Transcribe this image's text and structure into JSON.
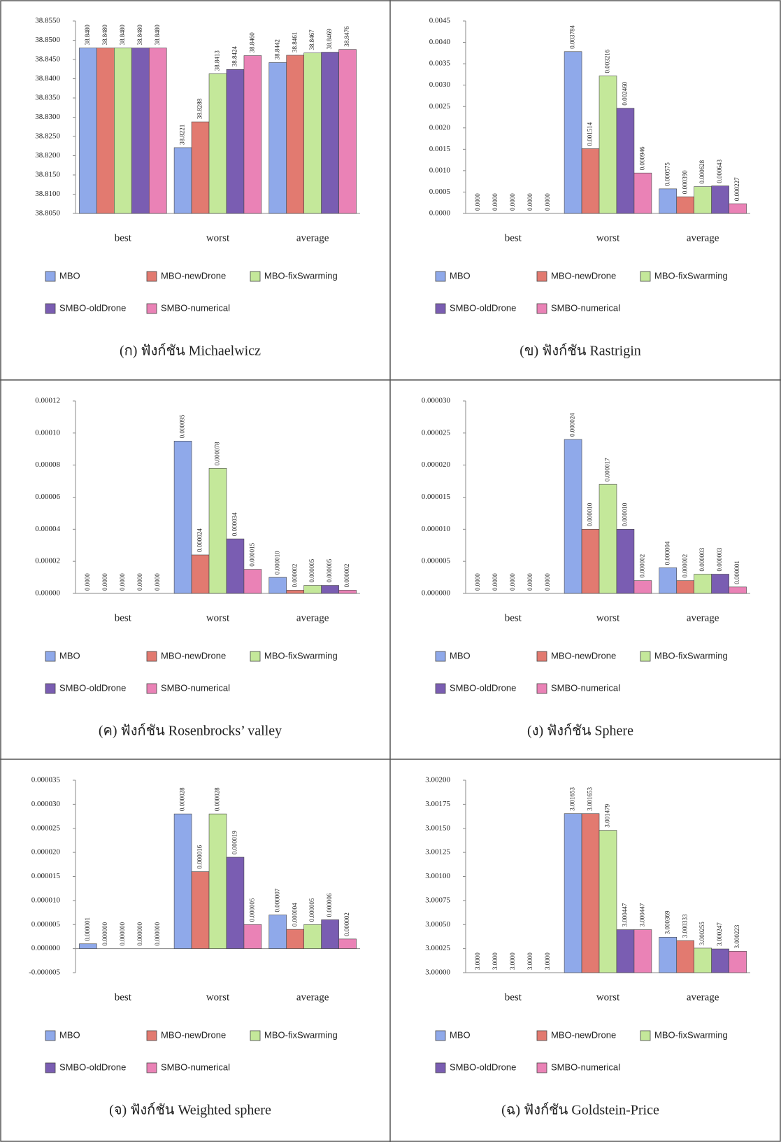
{
  "chart_data": [
    {
      "type": "bar",
      "caption": "(ก) ฟังก์ชัน Michaelwicz",
      "categories": [
        "best",
        "worst",
        "average"
      ],
      "ylim": [
        38.805,
        38.855
      ],
      "yticks": [
        {
          "value": 38.805,
          "label": "38.8050"
        },
        {
          "value": 38.81,
          "label": "38.8100"
        },
        {
          "value": 38.815,
          "label": "38.8150"
        },
        {
          "value": 38.82,
          "label": "38.8200"
        },
        {
          "value": 38.825,
          "label": "38.8250"
        },
        {
          "value": 38.83,
          "label": "38.8300"
        },
        {
          "value": 38.835,
          "label": "38.8350"
        },
        {
          "value": 38.84,
          "label": "38.8400"
        },
        {
          "value": 38.845,
          "label": "38.8450"
        },
        {
          "value": 38.85,
          "label": "38.8500"
        },
        {
          "value": 38.855,
          "label": "38.8550"
        }
      ],
      "series": [
        {
          "name": "MBO",
          "color": "#8fa9ea",
          "values": [
            38.848,
            38.8221,
            38.8442
          ],
          "value_labels": [
            "38.8480",
            "38.8221",
            "38.8442"
          ]
        },
        {
          "name": "MBO-newDrone",
          "color": "#e27a70",
          "values": [
            38.848,
            38.8288,
            38.8461
          ],
          "value_labels": [
            "38.8480",
            "38.8288",
            "38.8461"
          ]
        },
        {
          "name": "MBO-fixSwarming",
          "color": "#c4e89a",
          "values": [
            38.848,
            38.8413,
            38.8467
          ],
          "value_labels": [
            "38.8480",
            "38.8413",
            "38.8467"
          ]
        },
        {
          "name": "SMBO-oldDrone",
          "color": "#7a5db2",
          "values": [
            38.848,
            38.8424,
            38.8469
          ],
          "value_labels": [
            "38.8480",
            "38.8424",
            "38.8469"
          ]
        },
        {
          "name": "SMBO-numerical",
          "color": "#ea82b6",
          "values": [
            38.848,
            38.846,
            38.8476
          ],
          "value_labels": [
            "38.8480",
            "38.8460",
            "38.8476"
          ]
        }
      ]
    },
    {
      "type": "bar",
      "caption": "(ข) ฟังก์ชัน Rastrigin",
      "categories": [
        "best",
        "worst",
        "average"
      ],
      "ylim": [
        0,
        0.0045
      ],
      "yticks": [
        {
          "value": 0,
          "label": "0.0000"
        },
        {
          "value": 0.0005,
          "label": "0.0005"
        },
        {
          "value": 0.001,
          "label": "0.0010"
        },
        {
          "value": 0.0015,
          "label": "0.0015"
        },
        {
          "value": 0.002,
          "label": "0.0020"
        },
        {
          "value": 0.0025,
          "label": "0.0025"
        },
        {
          "value": 0.003,
          "label": "0.0030"
        },
        {
          "value": 0.0035,
          "label": "0.0035"
        },
        {
          "value": 0.004,
          "label": "0.0040"
        },
        {
          "value": 0.0045,
          "label": "0.0045"
        }
      ],
      "series": [
        {
          "name": "MBO",
          "color": "#8fa9ea",
          "values": [
            0,
            0.003784,
            0.000575
          ],
          "value_labels": [
            "0.0000",
            "0.003784",
            "0.000575"
          ]
        },
        {
          "name": "MBO-newDrone",
          "color": "#e27a70",
          "values": [
            0,
            0.001514,
            0.00039
          ],
          "value_labels": [
            "0.0000",
            "0.001514",
            "0.000390"
          ]
        },
        {
          "name": "MBO-fixSwarming",
          "color": "#c4e89a",
          "values": [
            0,
            0.003216,
            0.000628
          ],
          "value_labels": [
            "0.0000",
            "0.003216",
            "0.000628"
          ]
        },
        {
          "name": "SMBO-oldDrone",
          "color": "#7a5db2",
          "values": [
            0,
            0.00246,
            0.000643
          ],
          "value_labels": [
            "0.0000",
            "0.002460",
            "0.000643"
          ]
        },
        {
          "name": "SMBO-numerical",
          "color": "#ea82b6",
          "values": [
            0,
            0.000946,
            0.000227
          ],
          "value_labels": [
            "0.0000",
            "0.000946",
            "0.000227"
          ]
        }
      ]
    },
    {
      "type": "bar",
      "caption": "(ค) ฟังก์ชัน Rosenbrocks’ valley",
      "categories": [
        "best",
        "worst",
        "average"
      ],
      "ylim": [
        0,
        0.00012
      ],
      "yticks": [
        {
          "value": 0,
          "label": "0.00000"
        },
        {
          "value": 2e-05,
          "label": "0.00002"
        },
        {
          "value": 4e-05,
          "label": "0.00004"
        },
        {
          "value": 6e-05,
          "label": "0.00006"
        },
        {
          "value": 8e-05,
          "label": "0.00008"
        },
        {
          "value": 0.0001,
          "label": "0.00010"
        },
        {
          "value": 0.00012,
          "label": "0.00012"
        }
      ],
      "series": [
        {
          "name": "MBO",
          "color": "#8fa9ea",
          "values": [
            0,
            9.5e-05,
            1e-05
          ],
          "value_labels": [
            "0.0000",
            "0.000095",
            "0.000010"
          ]
        },
        {
          "name": "MBO-newDrone",
          "color": "#e27a70",
          "values": [
            0,
            2.4e-05,
            2e-06
          ],
          "value_labels": [
            "0.0000",
            "0.000024",
            "0.000002"
          ]
        },
        {
          "name": "MBO-fixSwarming",
          "color": "#c4e89a",
          "values": [
            0,
            7.8e-05,
            5e-06
          ],
          "value_labels": [
            "0.0000",
            "0.000078",
            "0.000005"
          ]
        },
        {
          "name": "SMBO-oldDrone",
          "color": "#7a5db2",
          "values": [
            0,
            3.4e-05,
            5e-06
          ],
          "value_labels": [
            "0.0000",
            "0.000034",
            "0.000005"
          ]
        },
        {
          "name": "SMBO-numerical",
          "color": "#ea82b6",
          "values": [
            0,
            1.5e-05,
            2e-06
          ],
          "value_labels": [
            "0.0000",
            "0.000015",
            "0.000002"
          ]
        }
      ]
    },
    {
      "type": "bar",
      "caption": "(ง) ฟังก์ชัน Sphere",
      "categories": [
        "best",
        "worst",
        "average"
      ],
      "ylim": [
        0,
        3e-05
      ],
      "yticks": [
        {
          "value": 0,
          "label": "0.000000"
        },
        {
          "value": 5e-06,
          "label": "0.000005"
        },
        {
          "value": 1e-05,
          "label": "0.000010"
        },
        {
          "value": 1.5e-05,
          "label": "0.000015"
        },
        {
          "value": 2e-05,
          "label": "0.000020"
        },
        {
          "value": 2.5e-05,
          "label": "0.000025"
        },
        {
          "value": 3e-05,
          "label": "0.000030"
        }
      ],
      "series": [
        {
          "name": "MBO",
          "color": "#8fa9ea",
          "values": [
            0,
            2.4e-05,
            4e-06
          ],
          "value_labels": [
            "0.0000",
            "0.000024",
            "0.000004"
          ]
        },
        {
          "name": "MBO-newDrone",
          "color": "#e27a70",
          "values": [
            0,
            1e-05,
            2e-06
          ],
          "value_labels": [
            "0.0000",
            "0.000010",
            "0.000002"
          ]
        },
        {
          "name": "MBO-fixSwarming",
          "color": "#c4e89a",
          "values": [
            0,
            1.7e-05,
            3e-06
          ],
          "value_labels": [
            "0.0000",
            "0.000017",
            "0.000003"
          ]
        },
        {
          "name": "SMBO-oldDrone",
          "color": "#7a5db2",
          "values": [
            0,
            1e-05,
            3e-06
          ],
          "value_labels": [
            "0.0000",
            "0.000010",
            "0.000003"
          ]
        },
        {
          "name": "SMBO-numerical",
          "color": "#ea82b6",
          "values": [
            0,
            2e-06,
            1e-06
          ],
          "value_labels": [
            "0.0000",
            "0.000002",
            "0.000001"
          ]
        }
      ]
    },
    {
      "type": "bar",
      "caption": "(จ) ฟังก์ชัน Weighted sphere",
      "categories": [
        "best",
        "worst",
        "average"
      ],
      "ylim": [
        -5e-06,
        3.5e-05
      ],
      "yticks": [
        {
          "value": -5e-06,
          "label": "-0.000005"
        },
        {
          "value": 0,
          "label": "0.000000"
        },
        {
          "value": 5e-06,
          "label": "0.000005"
        },
        {
          "value": 1e-05,
          "label": "0.000010"
        },
        {
          "value": 1.5e-05,
          "label": "0.000015"
        },
        {
          "value": 2e-05,
          "label": "0.000020"
        },
        {
          "value": 2.5e-05,
          "label": "0.000025"
        },
        {
          "value": 3e-05,
          "label": "0.000030"
        },
        {
          "value": 3.5e-05,
          "label": "0.000035"
        }
      ],
      "series": [
        {
          "name": "MBO",
          "color": "#8fa9ea",
          "values": [
            1e-06,
            2.8e-05,
            7e-06
          ],
          "value_labels": [
            "0.000001",
            "0.000028",
            "0.000007"
          ]
        },
        {
          "name": "MBO-newDrone",
          "color": "#e27a70",
          "values": [
            0,
            1.6e-05,
            4e-06
          ],
          "value_labels": [
            "0.000000",
            "0.000016",
            "0.000004"
          ]
        },
        {
          "name": "MBO-fixSwarming",
          "color": "#c4e89a",
          "values": [
            0,
            2.8e-05,
            5e-06
          ],
          "value_labels": [
            "0.000000",
            "0.000028",
            "0.000005"
          ]
        },
        {
          "name": "SMBO-oldDrone",
          "color": "#7a5db2",
          "values": [
            0,
            1.9e-05,
            6e-06
          ],
          "value_labels": [
            "0.000000",
            "0.000019",
            "0.000006"
          ]
        },
        {
          "name": "SMBO-numerical",
          "color": "#ea82b6",
          "values": [
            0,
            5e-06,
            2e-06
          ],
          "value_labels": [
            "0.000000",
            "0.000005",
            "0.000002"
          ]
        }
      ]
    },
    {
      "type": "bar",
      "caption": "(ฉ) ฟังก์ชัน Goldstein-Price",
      "categories": [
        "best",
        "worst",
        "average"
      ],
      "ylim": [
        3,
        3.002
      ],
      "yticks": [
        {
          "value": 3,
          "label": "3.00000"
        },
        {
          "value": 3.00025,
          "label": "3.00025"
        },
        {
          "value": 3.0005,
          "label": "3.00050"
        },
        {
          "value": 3.00075,
          "label": "3.00075"
        },
        {
          "value": 3.001,
          "label": "3.00100"
        },
        {
          "value": 3.00125,
          "label": "3.00125"
        },
        {
          "value": 3.0015,
          "label": "3.00150"
        },
        {
          "value": 3.00175,
          "label": "3.00175"
        },
        {
          "value": 3.002,
          "label": "3.00200"
        }
      ],
      "series": [
        {
          "name": "MBO",
          "color": "#8fa9ea",
          "values": [
            3,
            3.001653,
            3.000369
          ],
          "value_labels": [
            "3.0000",
            "3.001653",
            "3.000369"
          ]
        },
        {
          "name": "MBO-newDrone",
          "color": "#e27a70",
          "values": [
            3,
            3.001653,
            3.000333
          ],
          "value_labels": [
            "3.0000",
            "3.001653",
            "3.000333"
          ]
        },
        {
          "name": "MBO-fixSwarming",
          "color": "#c4e89a",
          "values": [
            3,
            3.001479,
            3.000255
          ],
          "value_labels": [
            "3.0000",
            "3.001479",
            "3.000255"
          ]
        },
        {
          "name": "SMBO-oldDrone",
          "color": "#7a5db2",
          "values": [
            3,
            3.000447,
            3.000247
          ],
          "value_labels": [
            "3.0000",
            "3.000447",
            "3.000247"
          ]
        },
        {
          "name": "SMBO-numerical",
          "color": "#ea82b6",
          "values": [
            3,
            3.000447,
            3.000223
          ],
          "value_labels": [
            "3.0000",
            "3.000447",
            "3.000223"
          ]
        }
      ]
    }
  ]
}
